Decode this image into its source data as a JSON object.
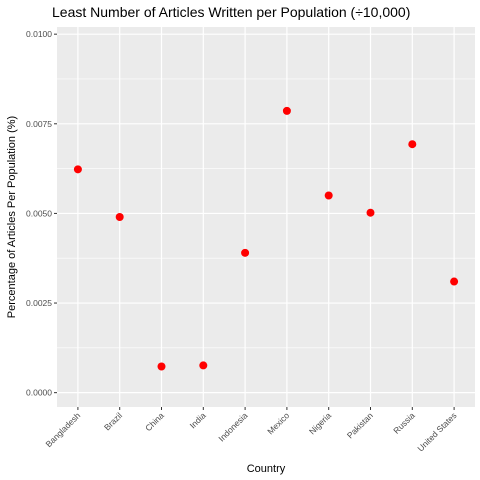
{
  "chart_data": {
    "type": "scatter",
    "title": "Least Number of Articles Written per Population (÷10,000)",
    "xlabel": "Country",
    "ylabel": "Percentage of Articles Per Population (%)",
    "categories": [
      "Bangladesh",
      "Brazil",
      "China",
      "India",
      "Indonesia",
      "Mexico",
      "Nigeria",
      "Pakistan",
      "Russia",
      "United States"
    ],
    "values": [
      0.00623,
      0.0049,
      0.00073,
      0.00076,
      0.0039,
      0.00786,
      0.0055,
      0.00502,
      0.00693,
      0.0031
    ],
    "yticks": [
      "0.0000",
      "0.0025",
      "0.0050",
      "0.0075",
      "0.0100"
    ],
    "ytick_values": [
      0,
      0.0025,
      0.005,
      0.0075,
      0.01
    ],
    "ylim": [
      -0.0004,
      0.0102
    ],
    "grid": true,
    "legend": "none",
    "colors": {
      "point": "#ff0000",
      "panel": "#ebebeb",
      "gridline": "#ffffff"
    }
  }
}
